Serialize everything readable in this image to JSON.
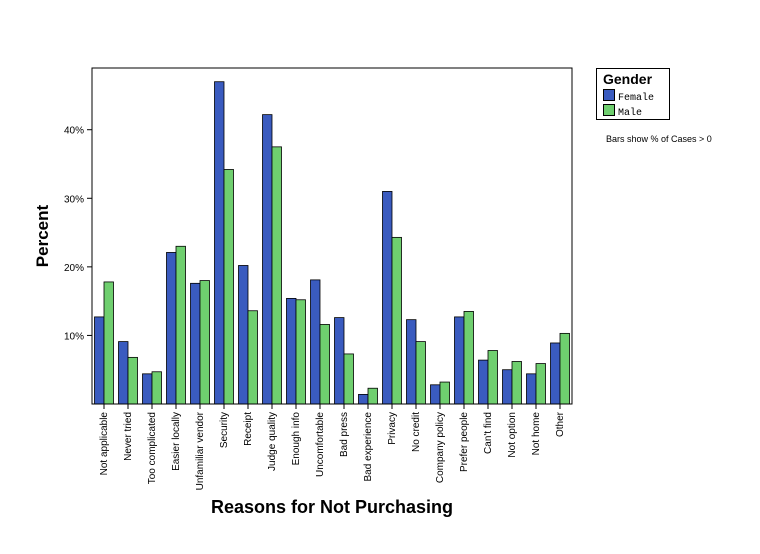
{
  "chart_data": {
    "type": "bar",
    "xlabel": "Reasons for Not Purchasing",
    "ylabel": "Percent",
    "ylim": [
      0,
      49
    ],
    "yticks": [
      10,
      20,
      30,
      40
    ],
    "ytick_labels": [
      "10%",
      "20%",
      "30%",
      "40%"
    ],
    "categories": [
      "Not applicable",
      "Never tried",
      "Too complicated",
      "Easier locally",
      "Unfamiliar vendor",
      "Security",
      "Receipt",
      "Judge quality",
      "Enough info",
      "Uncomfortable",
      "Bad press",
      "Bad experience",
      "Privacy",
      "No credit",
      "Company policy",
      "Prefer people",
      "Can't find",
      "Not option",
      "Not home",
      "Other"
    ],
    "series": [
      {
        "name": "Female",
        "color": "#3a5bbf",
        "values": [
          12.7,
          9.1,
          4.4,
          22.1,
          17.6,
          47.0,
          20.2,
          42.2,
          15.4,
          18.1,
          12.6,
          1.4,
          31.0,
          12.3,
          2.8,
          12.7,
          6.4,
          5.0,
          4.4,
          8.9
        ]
      },
      {
        "name": "Male",
        "color": "#6fcf6f",
        "values": [
          17.8,
          6.8,
          4.7,
          23.0,
          18.0,
          34.2,
          13.6,
          37.5,
          15.2,
          11.6,
          7.3,
          2.3,
          24.3,
          9.1,
          3.2,
          13.5,
          7.8,
          6.2,
          5.9,
          10.3
        ]
      }
    ],
    "legend": {
      "title": "Gender",
      "placement": "right"
    },
    "grid": false
  },
  "note": "Bars show % of Cases > 0"
}
